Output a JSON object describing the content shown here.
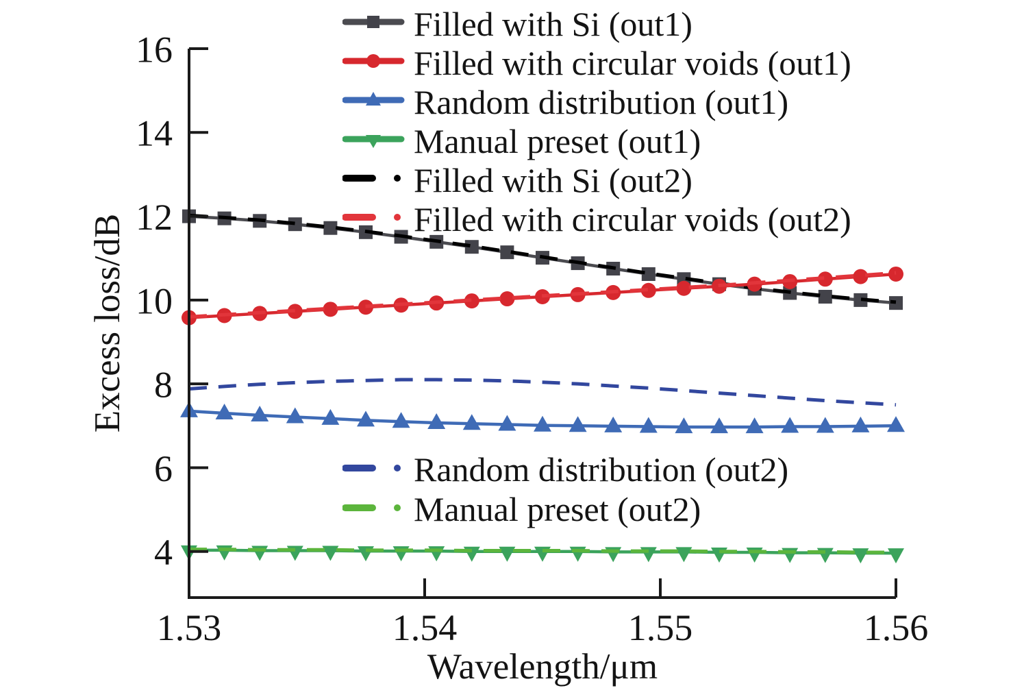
{
  "figure": {
    "background": "#ffffff",
    "text_color": "#141414",
    "axis_color": "#1a1a1a"
  },
  "axes": {
    "x": {
      "label": "Wavelength/μm",
      "min": 1.53,
      "max": 1.56,
      "ticks": [
        "1.53",
        "1.54",
        "1.55",
        "1.56"
      ],
      "tick_values": [
        1.53,
        1.54,
        1.55,
        1.56
      ]
    },
    "y": {
      "label": "Excess loss/dB",
      "min": 2.9,
      "max": 16,
      "ticks": [
        "16",
        "14",
        "12",
        "10",
        "8",
        "6",
        "4"
      ],
      "tick_values": [
        16,
        14,
        12,
        10,
        8,
        6,
        4
      ]
    }
  },
  "chart_data": {
    "type": "line",
    "title": "",
    "xlabel": "Wavelength/μm",
    "ylabel": "Excess loss/dB",
    "xlim": [
      1.53,
      1.56
    ],
    "ylim": [
      2.9,
      16
    ],
    "grid": false,
    "x": [
      1.53,
      1.5315,
      1.533,
      1.5345,
      1.536,
      1.5375,
      1.539,
      1.5405,
      1.542,
      1.5435,
      1.545,
      1.5465,
      1.548,
      1.5495,
      1.551,
      1.5525,
      1.554,
      1.5555,
      1.557,
      1.5585,
      1.56
    ],
    "series": [
      {
        "name": "Filled with Si (out1)",
        "color": "#4b4b50",
        "marker_color": "#43434a",
        "style": "solid",
        "marker": "square",
        "values": [
          12.0,
          11.95,
          11.89,
          11.81,
          11.72,
          11.62,
          11.51,
          11.39,
          11.27,
          11.14,
          11.01,
          10.88,
          10.75,
          10.62,
          10.5,
          10.38,
          10.27,
          10.17,
          10.08,
          10.0,
          9.93
        ]
      },
      {
        "name": "Filled with circular voids (out1)",
        "color": "#d7282e",
        "marker_color": "#d7282e",
        "style": "solid",
        "marker": "circle",
        "values": [
          9.58,
          9.63,
          9.68,
          9.73,
          9.78,
          9.83,
          9.88,
          9.93,
          9.98,
          10.03,
          10.08,
          10.13,
          10.18,
          10.23,
          10.28,
          10.33,
          10.38,
          10.44,
          10.5,
          10.56,
          10.62
        ]
      },
      {
        "name": "Random distribution (out1)",
        "color": "#3f6bb6",
        "marker_color": "#3f6bb6",
        "style": "solid",
        "marker": "triangle-up",
        "values": [
          7.35,
          7.3,
          7.25,
          7.21,
          7.17,
          7.13,
          7.1,
          7.07,
          7.05,
          7.03,
          7.01,
          7.0,
          6.99,
          6.98,
          6.97,
          6.97,
          6.97,
          6.98,
          6.98,
          6.99,
          7.0
        ]
      },
      {
        "name": "Manual preset (out1)",
        "color": "#3ba35c",
        "marker_color": "#3ba35c",
        "style": "solid",
        "marker": "triangle-down",
        "values": [
          4.03,
          4.03,
          4.02,
          4.02,
          4.02,
          4.01,
          4.01,
          4.01,
          4.0,
          4.0,
          4.0,
          4.0,
          3.99,
          3.99,
          3.99,
          3.98,
          3.98,
          3.97,
          3.97,
          3.96,
          3.96
        ]
      },
      {
        "name": "Filled with Si (out2)",
        "color": "#000000",
        "marker_color": "#000000",
        "style": "dashed",
        "marker": "none",
        "values": [
          12.02,
          11.97,
          11.91,
          11.83,
          11.74,
          11.64,
          11.53,
          11.41,
          11.29,
          11.16,
          11.03,
          10.9,
          10.77,
          10.64,
          10.52,
          10.4,
          10.29,
          10.19,
          10.1,
          10.02,
          9.95
        ]
      },
      {
        "name": "Filled with circular voids (out2)",
        "color": "#e2353b",
        "marker_color": "#e2353b",
        "style": "dashed",
        "marker": "none",
        "values": [
          9.6,
          9.65,
          9.7,
          9.75,
          9.8,
          9.85,
          9.9,
          9.95,
          10.0,
          10.05,
          10.1,
          10.15,
          10.2,
          10.25,
          10.3,
          10.35,
          10.41,
          10.47,
          10.53,
          10.59,
          10.65
        ]
      },
      {
        "name": "Random distribution (out2)",
        "color": "#32479e",
        "marker_color": "#32479e",
        "style": "dashed",
        "marker": "none",
        "values": [
          7.88,
          7.94,
          7.99,
          8.03,
          8.06,
          8.08,
          8.1,
          8.1,
          8.09,
          8.07,
          8.04,
          8.0,
          7.95,
          7.9,
          7.84,
          7.78,
          7.72,
          7.66,
          7.6,
          7.55,
          7.5
        ]
      },
      {
        "name": "Manual preset (out2)",
        "color": "#5cb53c",
        "marker_color": "#5cb53c",
        "style": "dashed",
        "marker": "none",
        "values": [
          4.05,
          4.05,
          4.04,
          4.04,
          4.04,
          4.03,
          4.03,
          4.03,
          4.02,
          4.02,
          4.02,
          4.02,
          4.01,
          4.01,
          4.01,
          4.0,
          4.0,
          3.99,
          3.99,
          3.98,
          3.98
        ]
      }
    ],
    "legend_groups": [
      {
        "id": "legend-top",
        "position": "top-center-overlay",
        "series_indexes": [
          0,
          1,
          2,
          3,
          4,
          5
        ]
      },
      {
        "id": "legend-mid",
        "position": "middle-overlay",
        "series_indexes": [
          6,
          7
        ]
      }
    ],
    "legend_frame": false
  }
}
